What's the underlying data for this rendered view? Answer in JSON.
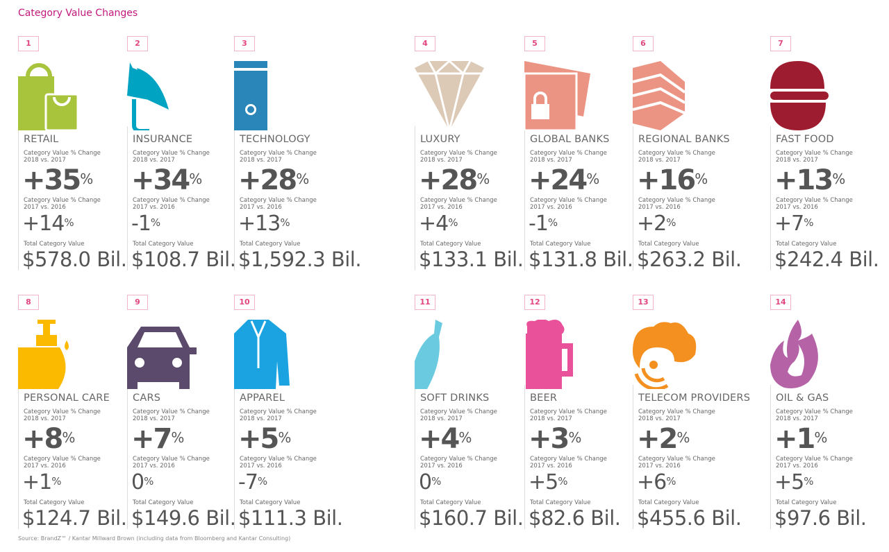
{
  "title": "Category Value Changes",
  "labels": {
    "change_2018": "Category Value % Change\n2018 vs. 2017",
    "change_2017": "Category Value % Change\n2017 vs. 2016",
    "total": "Total Category Value",
    "percent": "%"
  },
  "source": "Source: BrandZ™ / Kantar Millward Brown  (including data from Bloomberg and Kantar Consulting)",
  "categories": [
    {
      "rank": "1",
      "name": "RETAIL",
      "change_2018": "+35",
      "change_2017": "+14",
      "total": "$578.0 Bil.",
      "icon": "shopping-bags-icon",
      "color": "#a8c43c"
    },
    {
      "rank": "2",
      "name": "INSURANCE",
      "change_2018": "+34",
      "change_2017": "-1",
      "total": "$108.7 Bil.",
      "icon": "umbrella-icon",
      "color": "#00a3c2"
    },
    {
      "rank": "3",
      "name": "TECHNOLOGY",
      "change_2018": "+28",
      "change_2017": "+13",
      "total": "$1,592.3 Bil.",
      "icon": "computer-tower-icon",
      "color": "#2a86b8"
    },
    {
      "rank": "4",
      "name": "LUXURY",
      "change_2018": "+28",
      "change_2017": "+4",
      "total": "$133.1 Bil.",
      "icon": "diamond-icon",
      "color": "#dccab6"
    },
    {
      "rank": "5",
      "name": "GLOBAL BANKS",
      "change_2018": "+24",
      "change_2017": "-1",
      "total": "$131.8 Bil.",
      "icon": "credit-card-lock-icon",
      "color": "#ec9484"
    },
    {
      "rank": "6",
      "name": "REGIONAL BANKS",
      "change_2018": "+16",
      "change_2017": "+2",
      "total": "$263.2 Bil.",
      "icon": "bank-notes-icon",
      "color": "#ec9484"
    },
    {
      "rank": "7",
      "name": "FAST FOOD",
      "change_2018": "+13",
      "change_2017": "+7",
      "total": "$242.4 Bil.",
      "icon": "burger-icon",
      "color": "#9e1c30"
    },
    {
      "rank": "8",
      "name": "PERSONAL CARE",
      "change_2018": "+8",
      "change_2017": "+1",
      "total": "$124.7 Bil.",
      "icon": "soap-dispenser-icon",
      "color": "#fbb900"
    },
    {
      "rank": "9",
      "name": "CARS",
      "change_2018": "+7",
      "change_2017": "0",
      "total": "$149.6 Bil.",
      "icon": "car-icon",
      "color": "#5b4a6b"
    },
    {
      "rank": "10",
      "name": "APPAREL",
      "change_2018": "+5",
      "change_2017": "-7",
      "total": "$111.3 Bil.",
      "icon": "shirt-icon",
      "color": "#1aa3e0"
    },
    {
      "rank": "11",
      "name": "SOFT DRINKS",
      "change_2018": "+4",
      "change_2017": "0",
      "total": "$160.7 Bil.",
      "icon": "bottle-icon",
      "color": "#6acbe0"
    },
    {
      "rank": "12",
      "name": "BEER",
      "change_2018": "+3",
      "change_2017": "+5",
      "total": "$82.6 Bil.",
      "icon": "beer-mug-icon",
      "color": "#e9529a"
    },
    {
      "rank": "13",
      "name": "TELECOM PROVIDERS",
      "change_2018": "+2",
      "change_2017": "+6",
      "total": "$455.6 Bil.",
      "icon": "cloud-signal-icon",
      "color": "#f39020"
    },
    {
      "rank": "14",
      "name": "OIL & GAS",
      "change_2018": "+1",
      "change_2017": "+5",
      "total": "$97.6 Bil.",
      "icon": "flame-icon",
      "color": "#b563a6"
    }
  ]
}
